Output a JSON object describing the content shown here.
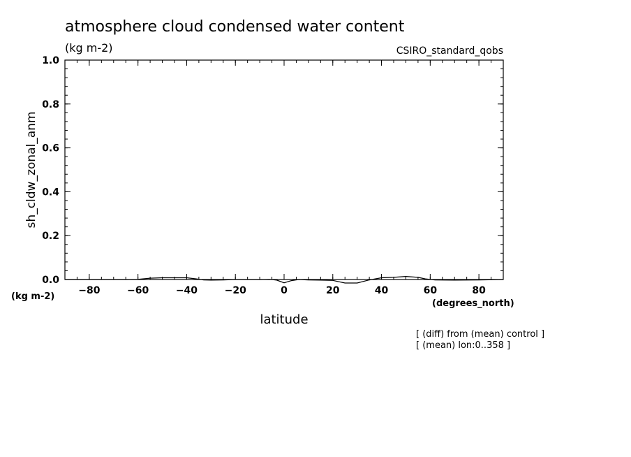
{
  "chart_data": {
    "type": "line",
    "title": "atmosphere cloud condensed water content",
    "subtitle": "(kg m-2)",
    "model": "CSIRO_standard_qobs",
    "ylabel": "sh_cldw_zonal_anm",
    "y_unit": "(kg m-2)",
    "xlabel": "latitude",
    "x_unit": "(degrees_north)",
    "xlim": [
      -90,
      90
    ],
    "ylim": [
      0.0,
      1.0
    ],
    "x_ticks": [
      -80,
      -60,
      -40,
      -20,
      0,
      20,
      40,
      60,
      80
    ],
    "x_tick_labels": [
      "−80",
      "−60",
      "−40",
      "−20",
      "0",
      "20",
      "40",
      "60",
      "80"
    ],
    "y_ticks": [
      0.0,
      0.2,
      0.4,
      0.6,
      0.8,
      1.0
    ],
    "y_tick_labels": [
      "0.0",
      "0.2",
      "0.4",
      "0.6",
      "0.8",
      "1.0"
    ],
    "series": [
      {
        "x": [
          -90,
          -80,
          -70,
          -65,
          -60,
          -55,
          -50,
          -45,
          -40,
          -36,
          -33,
          -30,
          -25,
          -20,
          -15,
          -10,
          -6,
          -3,
          0,
          3,
          6,
          10,
          15,
          20,
          25,
          30,
          35,
          40,
          45,
          50,
          55,
          58,
          62,
          70,
          80,
          90
        ],
        "y": [
          0.0,
          0.0,
          0.0,
          0.0,
          0.001,
          0.006,
          0.008,
          0.008,
          0.008,
          0.003,
          -0.002,
          -0.003,
          -0.002,
          0.0,
          0.0,
          0.0,
          0.001,
          -0.003,
          -0.015,
          -0.005,
          0.0,
          -0.002,
          -0.003,
          -0.004,
          -0.016,
          -0.016,
          -0.002,
          0.008,
          0.01,
          0.014,
          0.01,
          0.003,
          -0.002,
          -0.003,
          -0.002,
          0.0
        ]
      }
    ],
    "grid": false,
    "notes": [
      "[ (diff) from (mean) control ]",
      "[ (mean) lon:0..358 ]"
    ]
  }
}
